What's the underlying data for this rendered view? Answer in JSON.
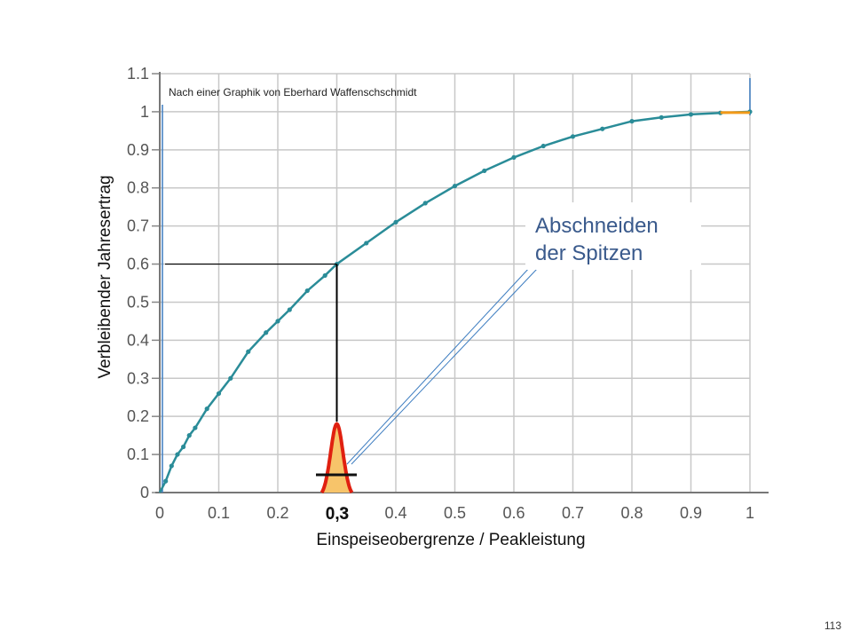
{
  "slide_number": "113",
  "chart_data": {
    "type": "line",
    "source_note": "Nach einer Graphik von Eberhard Waffenschschmidt",
    "xlabel": "Einspeiseobergrenze  / Peakleistung",
    "ylabel": "Verbleibender  Jahresertrag",
    "x_ticks": [
      "0",
      "0.1",
      "0.2",
      "0.3",
      "0.4",
      "0.5",
      "0.6",
      "0.7",
      "0.8",
      "0.9",
      "1"
    ],
    "y_ticks": [
      "0",
      "0.1",
      "0.2",
      "0.3",
      "0.4",
      "0.5",
      "0.6",
      "0.7",
      "0.8",
      "0.9",
      "1",
      "1.1"
    ],
    "xlim": [
      0,
      1
    ],
    "ylim": [
      0,
      1.1
    ],
    "grid": true,
    "series": [
      {
        "color": "#2a8c98",
        "x": [
          0.0,
          0.01,
          0.02,
          0.03,
          0.04,
          0.05,
          0.06,
          0.08,
          0.1,
          0.12,
          0.15,
          0.18,
          0.2,
          0.22,
          0.25,
          0.28,
          0.3,
          0.35,
          0.4,
          0.45,
          0.5,
          0.55,
          0.6,
          0.65,
          0.7,
          0.75,
          0.8,
          0.85,
          0.9,
          0.95,
          1.0
        ],
        "y": [
          0.0,
          0.03,
          0.07,
          0.1,
          0.12,
          0.15,
          0.17,
          0.22,
          0.26,
          0.3,
          0.37,
          0.42,
          0.45,
          0.48,
          0.53,
          0.57,
          0.6,
          0.655,
          0.71,
          0.76,
          0.805,
          0.845,
          0.88,
          0.91,
          0.935,
          0.955,
          0.975,
          0.985,
          0.993,
          0.997,
          1.0
        ]
      }
    ],
    "highlight": {
      "x": 0.3,
      "y": 0.6,
      "line_color": "#000000"
    },
    "marker_label": "0,3",
    "callout": {
      "lines": [
        "Abschneiden",
        "der Spitzen"
      ],
      "pointer_color": "#3c7cc0"
    },
    "peak_shape": {
      "center_x": 0.3,
      "peak_y": 0.18,
      "fill": "#f7c46a",
      "stroke": "#e02010"
    }
  }
}
